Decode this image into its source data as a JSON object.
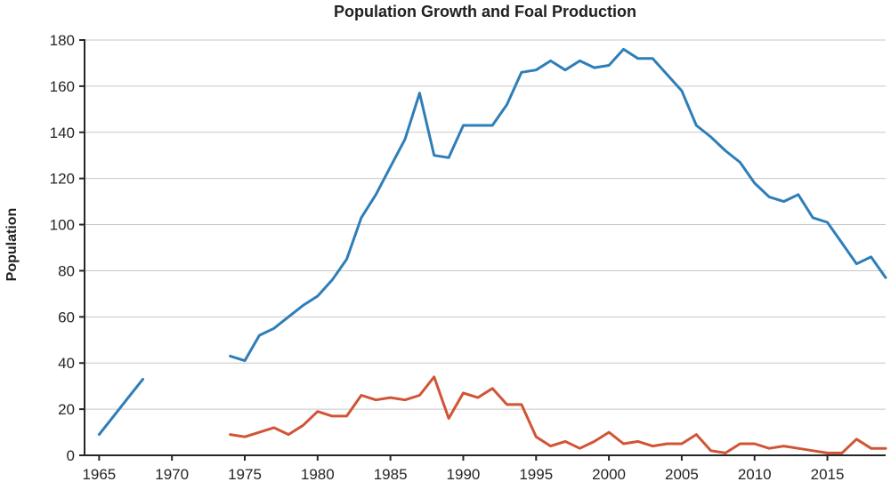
{
  "page": {
    "background": "#ffffff"
  },
  "chart_data": {
    "type": "line",
    "title": "Population Growth and Foal Production",
    "xlabel": "",
    "ylabel": "Population",
    "xlim": [
      1964,
      2019
    ],
    "ylim": [
      0,
      180
    ],
    "x_ticks": [
      1965,
      1970,
      1975,
      1980,
      1985,
      1990,
      1995,
      2000,
      2005,
      2010,
      2015
    ],
    "y_ticks": [
      0,
      20,
      40,
      60,
      80,
      100,
      120,
      140,
      160,
      180
    ],
    "grid": "horizontal",
    "legend": "none",
    "colors": {
      "axis": "#262626",
      "grid": "#c7c7c7",
      "tick_label": "#262626",
      "population_line": "#2e7eb8",
      "foal_line": "#d15435"
    },
    "years": [
      1965,
      1966,
      1967,
      1968,
      1969,
      1970,
      1971,
      1972,
      1973,
      1974,
      1975,
      1976,
      1977,
      1978,
      1979,
      1980,
      1981,
      1982,
      1983,
      1984,
      1985,
      1986,
      1987,
      1988,
      1989,
      1990,
      1991,
      1992,
      1993,
      1994,
      1995,
      1996,
      1997,
      1998,
      1999,
      2000,
      2001,
      2002,
      2003,
      2004,
      2005,
      2006,
      2007,
      2008,
      2009,
      2010,
      2011,
      2012,
      2013,
      2014,
      2015,
      2016,
      2017,
      2018,
      2019
    ],
    "series": [
      {
        "name": "Population",
        "color": "#2e7eb8",
        "values": [
          9,
          17,
          25,
          33,
          null,
          null,
          null,
          null,
          null,
          43,
          41,
          52,
          55,
          60,
          65,
          69,
          76,
          85,
          103,
          113,
          125,
          137,
          157,
          130,
          129,
          143,
          143,
          143,
          152,
          166,
          167,
          171,
          167,
          171,
          168,
          169,
          176,
          172,
          172,
          165,
          158,
          143,
          138,
          132,
          127,
          118,
          112,
          110,
          113,
          103,
          101,
          92,
          83,
          86,
          77
        ]
      },
      {
        "name": "Foal Production",
        "color": "#d15435",
        "values": [
          null,
          null,
          null,
          null,
          null,
          null,
          null,
          null,
          null,
          9,
          8,
          10,
          12,
          9,
          13,
          19,
          17,
          17,
          26,
          24,
          25,
          24,
          26,
          34,
          16,
          27,
          25,
          29,
          22,
          22,
          8,
          4,
          6,
          3,
          6,
          10,
          5,
          6,
          4,
          5,
          5,
          9,
          2,
          1,
          5,
          5,
          3,
          4,
          3,
          2,
          1,
          1,
          7,
          3,
          3
        ]
      }
    ]
  }
}
